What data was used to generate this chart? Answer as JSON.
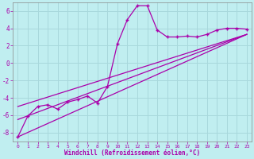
{
  "xlabel": "Windchill (Refroidissement éolien,°C)",
  "bg_color": "#c0eef0",
  "grid_color": "#a8d8dc",
  "line_color": "#aa00aa",
  "x_data": [
    0,
    1,
    2,
    3,
    4,
    5,
    6,
    7,
    8,
    9,
    10,
    11,
    12,
    13,
    14,
    15,
    16,
    17,
    18,
    19,
    20,
    21,
    22,
    23
  ],
  "y_main": [
    -8.5,
    -6.1,
    -5.0,
    -4.8,
    -5.3,
    -4.5,
    -4.2,
    -3.8,
    -4.6,
    -2.7,
    2.2,
    5.0,
    6.6,
    6.6,
    3.8,
    3.0,
    3.0,
    3.1,
    3.0,
    3.3,
    3.8,
    4.0,
    4.0,
    3.9
  ],
  "trend1_x": [
    0,
    23
  ],
  "trend1_y": [
    -8.5,
    3.3
  ],
  "trend2_x": [
    0,
    23
  ],
  "trend2_y": [
    -6.5,
    3.3
  ],
  "trend3_x": [
    0,
    23
  ],
  "trend3_y": [
    -5.0,
    3.3
  ],
  "ylim": [
    -9,
    7
  ],
  "xlim": [
    -0.5,
    23.5
  ],
  "yticks": [
    -8,
    -6,
    -4,
    -2,
    0,
    2,
    4,
    6
  ],
  "xticks": [
    0,
    1,
    2,
    3,
    4,
    5,
    6,
    7,
    8,
    9,
    10,
    11,
    12,
    13,
    14,
    15,
    16,
    17,
    18,
    19,
    20,
    21,
    22,
    23
  ]
}
